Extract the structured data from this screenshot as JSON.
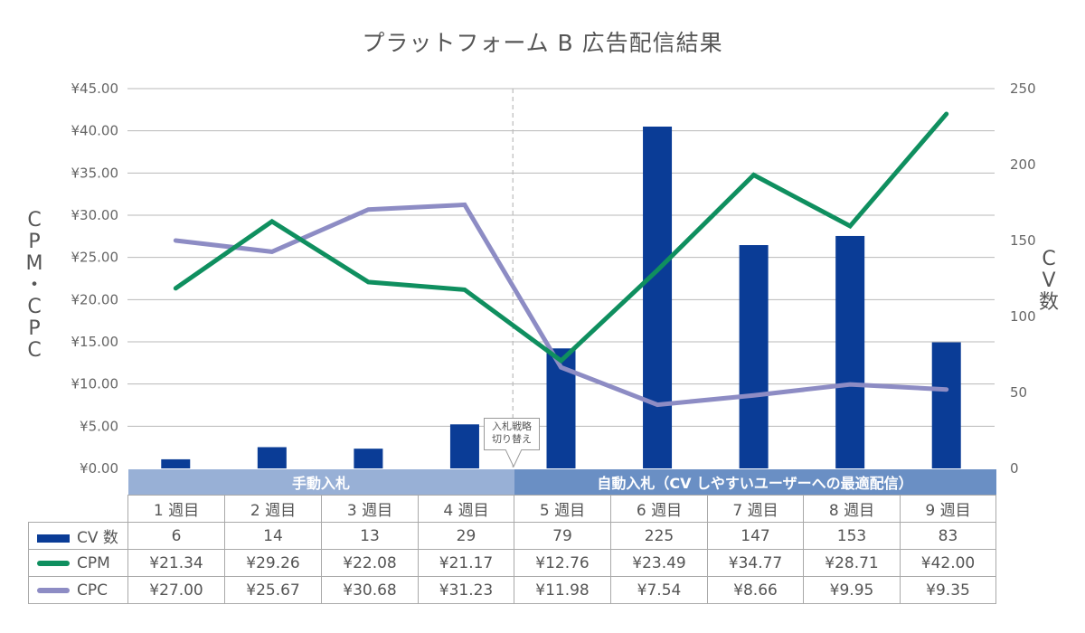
{
  "chart_data": {
    "type": "bar",
    "title": "プラットフォーム B 広告配信結果",
    "xlabel": "",
    "ylabel_left": "CPM・CPC",
    "ylabel_right": "CV数",
    "categories": [
      "1 週目",
      "2 週目",
      "3 週目",
      "4 週目",
      "5 週目",
      "6 週目",
      "7 週目",
      "8 週目",
      "9 週目"
    ],
    "y_left": {
      "min": 0,
      "max": 45,
      "step": 5,
      "tick_labels": [
        "¥0.00",
        "¥5.00",
        "¥10.00",
        "¥15.00",
        "¥20.00",
        "¥25.00",
        "¥30.00",
        "¥35.00",
        "¥40.00",
        "¥45.00"
      ]
    },
    "y_right": {
      "min": 0,
      "max": 250,
      "step": 50,
      "tick_labels": [
        "0",
        "50",
        "100",
        "150",
        "200",
        "250"
      ]
    },
    "grid": true,
    "legend": "table-bottom-left",
    "series": [
      {
        "name": "CV 数",
        "type": "bar",
        "axis": "right",
        "color": "#0a3c96",
        "values": [
          6,
          14,
          13,
          29,
          79,
          225,
          147,
          153,
          83
        ],
        "labels": [
          "6",
          "14",
          "13",
          "29",
          "79",
          "225",
          "147",
          "153",
          "83"
        ]
      },
      {
        "name": "CPM",
        "type": "line",
        "axis": "left",
        "color": "#0f8f5f",
        "values": [
          21.34,
          29.26,
          22.08,
          21.17,
          12.76,
          23.49,
          34.77,
          28.71,
          42.0
        ],
        "labels": [
          "¥21.34",
          "¥29.26",
          "¥22.08",
          "¥21.17",
          "¥12.76",
          "¥23.49",
          "¥34.77",
          "¥28.71",
          "¥42.00"
        ]
      },
      {
        "name": "CPC",
        "type": "line",
        "axis": "left",
        "color": "#8d8cc4",
        "values": [
          27.0,
          25.67,
          30.68,
          31.23,
          11.98,
          7.54,
          8.66,
          9.95,
          9.35
        ],
        "labels": [
          "¥27.00",
          "¥25.67",
          "¥30.68",
          "¥31.23",
          "¥11.98",
          "¥7.54",
          "¥8.66",
          "¥9.95",
          "¥9.35"
        ]
      }
    ],
    "phases": [
      {
        "label": "手動入札",
        "weeks": 4,
        "color": "#98b0d6"
      },
      {
        "label": "自動入札（CV しやすいユーザーへの最適配信）",
        "weeks": 5,
        "color": "#6a8fc4"
      }
    ],
    "annotation": {
      "text_line1": "入札戦略",
      "text_line2": "切り替え",
      "between": [
        "4 週目",
        "5 週目"
      ]
    }
  }
}
